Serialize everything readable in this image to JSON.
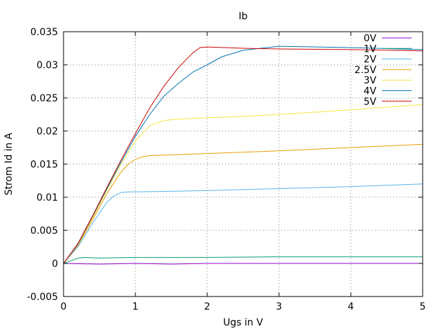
{
  "chart_data": {
    "type": "line",
    "title": "Ib",
    "xlabel": "Ugs in V",
    "ylabel": "Strom Id in A",
    "xlim": [
      0,
      5
    ],
    "ylim": [
      -0.005,
      0.035
    ],
    "xticks": [
      0,
      1,
      2,
      3,
      4,
      5
    ],
    "xtick_labels": [
      "0",
      "1",
      "2",
      "3",
      "4",
      "5"
    ],
    "yticks": [
      -0.005,
      0,
      0.005,
      0.01,
      0.015,
      0.02,
      0.025,
      0.03,
      0.035
    ],
    "ytick_labels": [
      "-0.005",
      "0",
      "0.005",
      "0.01",
      "0.015",
      "0.02",
      "0.025",
      "0.03",
      "0.035"
    ],
    "grid": true,
    "legend_position": "top-right",
    "series": [
      {
        "name": "0V",
        "color": "#9400d3",
        "x": [
          0,
          0.5,
          1,
          1.5,
          2,
          2.5,
          3,
          3.5,
          4,
          4.5,
          5
        ],
        "y": [
          0,
          -0.0001,
          0,
          -0.0001,
          0,
          0,
          0,
          0,
          0,
          0,
          0
        ]
      },
      {
        "name": "1V",
        "color": "#009e73",
        "x": [
          0,
          0.1,
          0.2,
          0.3,
          0.5,
          1,
          2,
          3,
          4,
          5
        ],
        "y": [
          0,
          0.0004,
          0.0008,
          0.0009,
          0.0008,
          0.0009,
          0.0009,
          0.001,
          0.001,
          0.001
        ]
      },
      {
        "name": "2V",
        "color": "#56b4e9",
        "x": [
          0,
          0.2,
          0.4,
          0.6,
          0.7,
          0.8,
          0.9,
          1,
          1.5,
          2,
          3,
          4,
          5
        ],
        "y": [
          0,
          0.0025,
          0.006,
          0.0092,
          0.0102,
          0.0107,
          0.0108,
          0.0108,
          0.0109,
          0.011,
          0.0113,
          0.0116,
          0.012
        ]
      },
      {
        "name": "2.5V",
        "color": "#e69f00",
        "x": [
          0,
          0.2,
          0.4,
          0.6,
          0.8,
          0.9,
          1,
          1.1,
          1.2,
          1.5,
          2,
          3,
          4,
          5
        ],
        "y": [
          0,
          0.0027,
          0.0065,
          0.0105,
          0.0138,
          0.015,
          0.0157,
          0.0161,
          0.0163,
          0.0164,
          0.0166,
          0.017,
          0.0175,
          0.018
        ]
      },
      {
        "name": "3V",
        "color": "#f0e442",
        "x": [
          0,
          0.2,
          0.4,
          0.6,
          0.8,
          1,
          1.2,
          1.4,
          1.6,
          1.8,
          2,
          2.5,
          3,
          4,
          5
        ],
        "y": [
          0,
          0.0028,
          0.0068,
          0.011,
          0.015,
          0.0185,
          0.0208,
          0.0216,
          0.0218,
          0.0219,
          0.022,
          0.0222,
          0.0225,
          0.0232,
          0.024
        ]
      },
      {
        "name": "4V",
        "color": "#0072b2",
        "x": [
          0,
          0.2,
          0.4,
          0.6,
          0.8,
          1,
          1.2,
          1.4,
          1.6,
          1.8,
          2,
          2.2,
          2.5,
          3,
          4,
          5
        ],
        "y": [
          0,
          0.0029,
          0.007,
          0.0112,
          0.0153,
          0.0192,
          0.0225,
          0.0253,
          0.0272,
          0.0289,
          0.03,
          0.0312,
          0.0322,
          0.0328,
          0.0326,
          0.0323
        ]
      },
      {
        "name": "5V",
        "color": "#cc0000",
        "x": [
          0,
          0.2,
          0.4,
          0.6,
          0.8,
          1,
          1.2,
          1.4,
          1.6,
          1.8,
          1.9,
          2,
          2.5,
          3,
          4,
          5
        ],
        "y": [
          0,
          0.003,
          0.0071,
          0.0114,
          0.0156,
          0.0196,
          0.0235,
          0.0268,
          0.0296,
          0.0318,
          0.0326,
          0.0327,
          0.0325,
          0.0324,
          0.0323,
          0.0321
        ]
      }
    ]
  }
}
